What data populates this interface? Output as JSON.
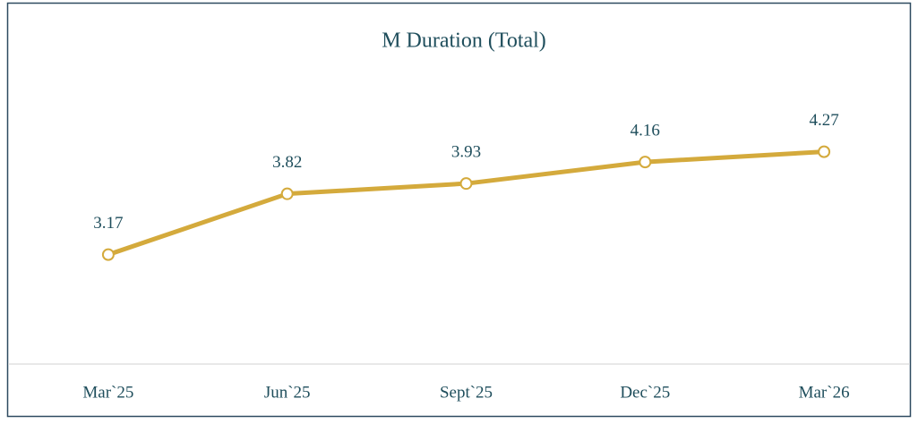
{
  "chart_data": {
    "type": "line",
    "title": "M Duration (Total)",
    "categories": [
      "Mar`25",
      "Jun`25",
      "Sept`25",
      "Dec`25",
      "Mar`26"
    ],
    "series": [
      {
        "name": "M Duration (Total)",
        "color": "#d4aa3c",
        "values": [
          3.17,
          3.82,
          3.93,
          4.16,
          4.27
        ]
      }
    ],
    "ylim": [
      2,
      5.5
    ]
  }
}
